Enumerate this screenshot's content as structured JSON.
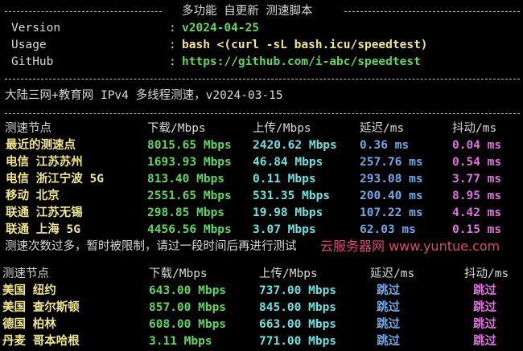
{
  "header": {
    "title": "多功能 自更新 测速脚本"
  },
  "info": [
    {
      "label": "Version",
      "value": "v2024-04-25",
      "color": "#5fd75f"
    },
    {
      "label": "Usage",
      "value": "bash <(curl -sL bash.icu/speedtest)",
      "color": "#f0e68c"
    },
    {
      "label": "GitHub",
      "value": "https://github.com/i-abc/speedtest",
      "color": "#5fd75f"
    }
  ],
  "subtitle": "大陆三网+教育网 IPv4 多线程测速，v2024-03-15",
  "table1": {
    "headers": [
      "测速节点",
      "下载/Mbps",
      "上传/Mbps",
      "延迟/ms",
      "抖动/ms"
    ],
    "rows": [
      [
        "最近的测速点",
        "8015.65 Mbps",
        "2420.62 Mbps",
        "0.36 ms",
        "0.04 ms"
      ],
      [
        "电信 江苏苏州",
        "1693.93 Mbps",
        "46.84 Mbps",
        "257.76 ms",
        "0.54 ms"
      ],
      [
        "电信 浙江宁波 5G",
        "813.40 Mbps",
        "0.11 Mbps",
        "293.08 ms",
        "3.77 ms"
      ],
      [
        "移动 北京",
        "2551.65 Mbps",
        "531.35 Mbps",
        "200.40 ms",
        "8.95 ms"
      ],
      [
        "联通 江苏无锡",
        "298.85 Mbps",
        "19.98 Mbps",
        "107.22 ms",
        "4.42 ms"
      ],
      [
        "联通 上海 5G",
        "4456.56 Mbps",
        "3.07 Mbps",
        "62.03 ms",
        "0.15 ms"
      ]
    ]
  },
  "notice": "测速次数过多，暂时被限制，请过一段时间后再进行测试",
  "table2": {
    "headers": [
      "测速节点",
      "下载/Mbps",
      "上传/Mbps",
      "延迟/ms",
      "抖动/ms"
    ],
    "rows": [
      [
        "美国 纽约",
        "643.00 Mbps",
        "737.00 Mbps",
        "跳过",
        "跳过"
      ],
      [
        "美国 查尔斯顿",
        "857.00 Mbps",
        "845.00 Mbps",
        "跳过",
        "跳过"
      ],
      [
        "德国 柏林",
        "608.00 Mbps",
        "663.00 Mbps",
        "跳过",
        "跳过"
      ],
      [
        "丹麦 哥本哈根",
        "3.11 Mbps",
        "771.00 Mbps",
        "跳过",
        "跳过"
      ]
    ]
  },
  "watermark": "云服务器网 www.yuntue.com"
}
